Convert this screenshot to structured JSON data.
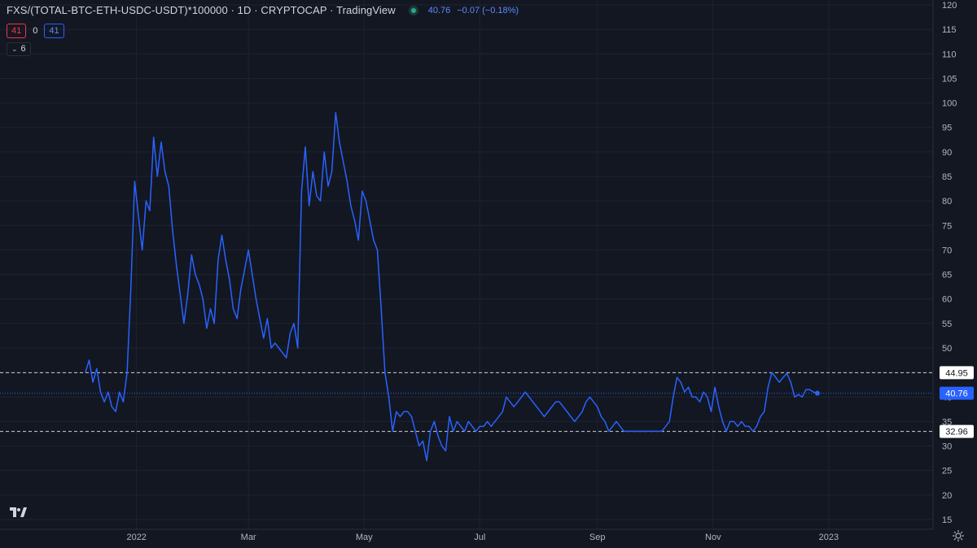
{
  "header": {
    "title": "FXS/(TOTAL-BTC-ETH-USDC-USDT)*100000 · 1D · CRYPTOCAP · TradingView",
    "price": "40.76",
    "change": "−0.07 (−0.18%)"
  },
  "ohlc": {
    "left": "41",
    "mid": "0",
    "right": "41"
  },
  "collapse": {
    "label": "6"
  },
  "colors": {
    "background": "#131722",
    "line": "#2962ff",
    "grid": "#1f2330",
    "axis_text": "#b2b5be",
    "badge_red": "#f23645"
  },
  "icons": {
    "logo": "tradingview-logo-icon",
    "settings": "gear-icon",
    "collapse": "chevron-down-icon",
    "status": "market-status-dot-icon"
  },
  "chart_data": {
    "type": "line",
    "ylim": [
      13,
      121
    ],
    "y_ticks": [
      15,
      20,
      25,
      30,
      35,
      40,
      45,
      50,
      55,
      60,
      65,
      70,
      75,
      80,
      85,
      90,
      95,
      100,
      105,
      110,
      115,
      120
    ],
    "x_labels": [
      {
        "label": "2022",
        "date": "2022-01-01"
      },
      {
        "label": "Mar",
        "date": "2022-03-01"
      },
      {
        "label": "May",
        "date": "2022-05-01"
      },
      {
        "label": "Jul",
        "date": "2022-07-01"
      },
      {
        "label": "Sep",
        "date": "2022-09-01"
      },
      {
        "label": "Nov",
        "date": "2022-11-01"
      },
      {
        "label": "2023",
        "date": "2023-01-01"
      }
    ],
    "xlim": [
      "2021-10-21",
      "2023-02-25"
    ],
    "grid": true,
    "horizontal_lines": [
      {
        "value": 44.95,
        "label": "44.95",
        "style": "dashed"
      },
      {
        "value": 32.96,
        "label": "32.96",
        "style": "dashed"
      }
    ],
    "last_value": {
      "value": 40.76,
      "label": "40.76"
    },
    "series": [
      {
        "points": [
          [
            "2021-12-05",
            45
          ],
          [
            "2021-12-07",
            47.5
          ],
          [
            "2021-12-09",
            43
          ],
          [
            "2021-12-11",
            45.8
          ],
          [
            "2021-12-13",
            41
          ],
          [
            "2021-12-15",
            39
          ],
          [
            "2021-12-17",
            41
          ],
          [
            "2021-12-19",
            38
          ],
          [
            "2021-12-21",
            37
          ],
          [
            "2021-12-23",
            41
          ],
          [
            "2021-12-25",
            39
          ],
          [
            "2021-12-27",
            45
          ],
          [
            "2021-12-29",
            62
          ],
          [
            "2021-12-31",
            84
          ],
          [
            "2022-01-02",
            77
          ],
          [
            "2022-01-04",
            70
          ],
          [
            "2022-01-06",
            80
          ],
          [
            "2022-01-08",
            78
          ],
          [
            "2022-01-10",
            93
          ],
          [
            "2022-01-12",
            85
          ],
          [
            "2022-01-14",
            92
          ],
          [
            "2022-01-16",
            86
          ],
          [
            "2022-01-18",
            83
          ],
          [
            "2022-01-20",
            74
          ],
          [
            "2022-01-22",
            67
          ],
          [
            "2022-01-24",
            61
          ],
          [
            "2022-01-26",
            55
          ],
          [
            "2022-01-28",
            61
          ],
          [
            "2022-01-30",
            69
          ],
          [
            "2022-02-01",
            65
          ],
          [
            "2022-02-03",
            63
          ],
          [
            "2022-02-05",
            60
          ],
          [
            "2022-02-07",
            54
          ],
          [
            "2022-02-09",
            58
          ],
          [
            "2022-02-11",
            55
          ],
          [
            "2022-02-13",
            68
          ],
          [
            "2022-02-15",
            73
          ],
          [
            "2022-02-17",
            68
          ],
          [
            "2022-02-19",
            64
          ],
          [
            "2022-02-21",
            58
          ],
          [
            "2022-02-23",
            56
          ],
          [
            "2022-02-25",
            62
          ],
          [
            "2022-02-27",
            66
          ],
          [
            "2022-03-01",
            70
          ],
          [
            "2022-03-03",
            65
          ],
          [
            "2022-03-05",
            60
          ],
          [
            "2022-03-07",
            56
          ],
          [
            "2022-03-09",
            52
          ],
          [
            "2022-03-11",
            56
          ],
          [
            "2022-03-13",
            50
          ],
          [
            "2022-03-15",
            51
          ],
          [
            "2022-03-17",
            50
          ],
          [
            "2022-03-19",
            49
          ],
          [
            "2022-03-21",
            48
          ],
          [
            "2022-03-23",
            53
          ],
          [
            "2022-03-25",
            55
          ],
          [
            "2022-03-27",
            50
          ],
          [
            "2022-03-29",
            82
          ],
          [
            "2022-03-31",
            91
          ],
          [
            "2022-04-02",
            79
          ],
          [
            "2022-04-04",
            86
          ],
          [
            "2022-04-06",
            81
          ],
          [
            "2022-04-08",
            80
          ],
          [
            "2022-04-10",
            90
          ],
          [
            "2022-04-12",
            83
          ],
          [
            "2022-04-14",
            86
          ],
          [
            "2022-04-16",
            98
          ],
          [
            "2022-04-18",
            92
          ],
          [
            "2022-04-20",
            88
          ],
          [
            "2022-04-22",
            84
          ],
          [
            "2022-04-24",
            79
          ],
          [
            "2022-04-26",
            76
          ],
          [
            "2022-04-28",
            72
          ],
          [
            "2022-04-30",
            82
          ],
          [
            "2022-05-02",
            80
          ],
          [
            "2022-05-04",
            76
          ],
          [
            "2022-05-06",
            72
          ],
          [
            "2022-05-08",
            70
          ],
          [
            "2022-05-10",
            58
          ],
          [
            "2022-05-12",
            45
          ],
          [
            "2022-05-14",
            40
          ],
          [
            "2022-05-16",
            33
          ],
          [
            "2022-05-18",
            37
          ],
          [
            "2022-05-20",
            36
          ],
          [
            "2022-05-22",
            37
          ],
          [
            "2022-05-24",
            37
          ],
          [
            "2022-05-26",
            36
          ],
          [
            "2022-05-28",
            33
          ],
          [
            "2022-05-30",
            30
          ],
          [
            "2022-06-01",
            31
          ],
          [
            "2022-06-03",
            27
          ],
          [
            "2022-06-05",
            33
          ],
          [
            "2022-06-07",
            35
          ],
          [
            "2022-06-09",
            32
          ],
          [
            "2022-06-11",
            30
          ],
          [
            "2022-06-13",
            29
          ],
          [
            "2022-06-15",
            36
          ],
          [
            "2022-06-17",
            33
          ],
          [
            "2022-06-19",
            35
          ],
          [
            "2022-06-21",
            34
          ],
          [
            "2022-06-23",
            33
          ],
          [
            "2022-06-25",
            35
          ],
          [
            "2022-06-27",
            34
          ],
          [
            "2022-06-29",
            33
          ],
          [
            "2022-07-01",
            34
          ],
          [
            "2022-07-03",
            34
          ],
          [
            "2022-07-05",
            35
          ],
          [
            "2022-07-07",
            34
          ],
          [
            "2022-07-09",
            35
          ],
          [
            "2022-07-11",
            36
          ],
          [
            "2022-07-13",
            37
          ],
          [
            "2022-07-15",
            40
          ],
          [
            "2022-07-17",
            39
          ],
          [
            "2022-07-19",
            38
          ],
          [
            "2022-07-21",
            39
          ],
          [
            "2022-07-23",
            40
          ],
          [
            "2022-07-25",
            41
          ],
          [
            "2022-07-27",
            40
          ],
          [
            "2022-07-29",
            39
          ],
          [
            "2022-07-31",
            38
          ],
          [
            "2022-08-02",
            37
          ],
          [
            "2022-08-04",
            36
          ],
          [
            "2022-08-06",
            37
          ],
          [
            "2022-08-08",
            38
          ],
          [
            "2022-08-10",
            39
          ],
          [
            "2022-08-12",
            39
          ],
          [
            "2022-08-14",
            38
          ],
          [
            "2022-08-16",
            37
          ],
          [
            "2022-08-18",
            36
          ],
          [
            "2022-08-20",
            35
          ],
          [
            "2022-08-22",
            36
          ],
          [
            "2022-08-24",
            37
          ],
          [
            "2022-08-26",
            39
          ],
          [
            "2022-08-28",
            40
          ],
          [
            "2022-08-30",
            39
          ],
          [
            "2022-09-01",
            38
          ],
          [
            "2022-09-03",
            36
          ],
          [
            "2022-09-05",
            35
          ],
          [
            "2022-09-07",
            33
          ],
          [
            "2022-09-09",
            34
          ],
          [
            "2022-09-11",
            35
          ],
          [
            "2022-09-13",
            34
          ],
          [
            "2022-09-15",
            33
          ],
          [
            "2022-09-17",
            33
          ],
          [
            "2022-09-19",
            33
          ],
          [
            "2022-09-21",
            33
          ],
          [
            "2022-09-23",
            33
          ],
          [
            "2022-09-25",
            33
          ],
          [
            "2022-09-27",
            33
          ],
          [
            "2022-09-29",
            33
          ],
          [
            "2022-10-01",
            33
          ],
          [
            "2022-10-03",
            33
          ],
          [
            "2022-10-05",
            33
          ],
          [
            "2022-10-07",
            34
          ],
          [
            "2022-10-09",
            35
          ],
          [
            "2022-10-11",
            40
          ],
          [
            "2022-10-13",
            44
          ],
          [
            "2022-10-15",
            43
          ],
          [
            "2022-10-17",
            41
          ],
          [
            "2022-10-19",
            42
          ],
          [
            "2022-10-21",
            40
          ],
          [
            "2022-10-23",
            40
          ],
          [
            "2022-10-25",
            39
          ],
          [
            "2022-10-27",
            41
          ],
          [
            "2022-10-29",
            40
          ],
          [
            "2022-10-31",
            37
          ],
          [
            "2022-11-02",
            42
          ],
          [
            "2022-11-04",
            38
          ],
          [
            "2022-11-06",
            35
          ],
          [
            "2022-11-08",
            33
          ],
          [
            "2022-11-10",
            35
          ],
          [
            "2022-11-12",
            35
          ],
          [
            "2022-11-14",
            34
          ],
          [
            "2022-11-16",
            35
          ],
          [
            "2022-11-18",
            34
          ],
          [
            "2022-11-20",
            34
          ],
          [
            "2022-11-22",
            33
          ],
          [
            "2022-11-24",
            34
          ],
          [
            "2022-11-26",
            36
          ],
          [
            "2022-11-28",
            37
          ],
          [
            "2022-11-30",
            42
          ],
          [
            "2022-12-02",
            45
          ],
          [
            "2022-12-04",
            44
          ],
          [
            "2022-12-06",
            43
          ],
          [
            "2022-12-08",
            44
          ],
          [
            "2022-12-10",
            44.8
          ],
          [
            "2022-12-12",
            43
          ],
          [
            "2022-12-14",
            40
          ],
          [
            "2022-12-16",
            40.5
          ],
          [
            "2022-12-18",
            40
          ],
          [
            "2022-12-20",
            41.5
          ],
          [
            "2022-12-22",
            41.5
          ],
          [
            "2022-12-24",
            41
          ],
          [
            "2022-12-26",
            40.76
          ]
        ]
      }
    ]
  }
}
